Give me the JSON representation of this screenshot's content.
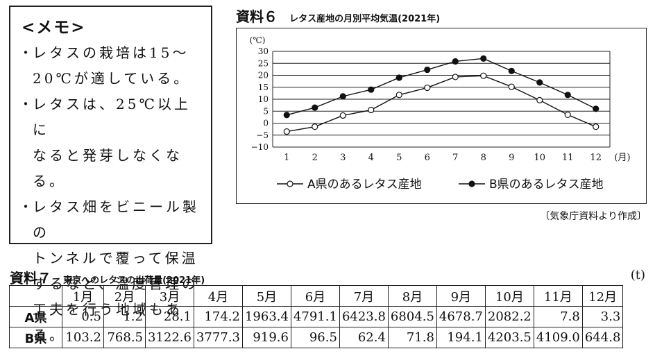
{
  "memo": {
    "title": "<メモ>",
    "bullet": "・",
    "items": [
      [
        "レタスの栽培は15～",
        "20℃が適している。"
      ],
      [
        "レタスは、25℃以上に",
        "なると発芽しなくなる。"
      ],
      [
        "レタス畑をビニール製の",
        "トンネルで覆って保温",
        "するなど、温度管理の",
        "工夫を行う地域もある。"
      ]
    ]
  },
  "resource6": {
    "label": "資料６",
    "title": "レタス産地の月別平均気温(2021年)",
    "source": "〔気象庁資料より作成〕"
  },
  "chart_data": {
    "type": "line",
    "title": "レタス産地の月別平均気温(2021年)",
    "ylabel": "(℃)",
    "xlabel": "(月)",
    "ylim": [
      -10,
      30
    ],
    "yticks": [
      "30",
      "25",
      "20",
      "15",
      "10",
      "5",
      "0",
      "−5",
      "−10"
    ],
    "categories": [
      "1",
      "2",
      "3",
      "4",
      "5",
      "6",
      "7",
      "8",
      "9",
      "10",
      "11",
      "12"
    ],
    "grid": true,
    "legend": "bottom",
    "series": [
      {
        "name": "A県のあるレタス産地",
        "marker": "open-circle",
        "values": [
          -3.5,
          -1.5,
          3.2,
          5.5,
          11.8,
          14.8,
          19.3,
          19.8,
          15.2,
          9.6,
          3.5,
          -1.5
        ]
      },
      {
        "name": "B県のあるレタス産地",
        "marker": "filled-circle",
        "values": [
          3.4,
          6.5,
          11.2,
          14.0,
          19.0,
          22.3,
          25.8,
          27.0,
          21.8,
          17.0,
          11.8,
          6.0
        ]
      }
    ]
  },
  "resource7": {
    "label": "資料７",
    "title": "東京へのレタスの出荷量(2021年)",
    "unit": "(t)",
    "months": [
      "1月",
      "2月",
      "3月",
      "4月",
      "5月",
      "6月",
      "7月",
      "8月",
      "9月",
      "10月",
      "11月",
      "12月"
    ],
    "rows": [
      {
        "label": "A県",
        "values": [
          "0.5",
          "1.2",
          "28.1",
          "174.2",
          "1963.4",
          "4791.1",
          "6423.8",
          "6804.5",
          "4678.7",
          "2082.2",
          "7.8",
          "3.3"
        ]
      },
      {
        "label": "B県",
        "values": [
          "103.2",
          "768.5",
          "3122.6",
          "3777.3",
          "919.6",
          "96.5",
          "62.4",
          "71.8",
          "194.1",
          "4203.5",
          "4109.0",
          "644.8"
        ]
      }
    ]
  }
}
